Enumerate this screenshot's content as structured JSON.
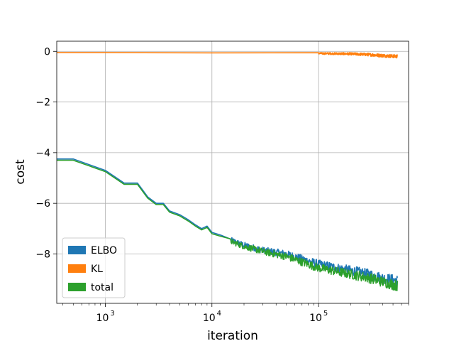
{
  "chart_data": {
    "type": "line",
    "title": "",
    "xlabel": "iteration",
    "ylabel": "cost",
    "xscale": "log",
    "xlim": [
      350,
      700000
    ],
    "ylim": [
      -9.95,
      0.4
    ],
    "grid": true,
    "legend_position": "lower-left",
    "x_ticks": [
      {
        "value": 1000,
        "base": "10",
        "exp": "3"
      },
      {
        "value": 10000,
        "base": "10",
        "exp": "4"
      },
      {
        "value": 100000,
        "base": "10",
        "exp": "5"
      }
    ],
    "y_ticks": [
      {
        "value": 0,
        "label": "0"
      },
      {
        "value": -2,
        "label": "−2"
      },
      {
        "value": -4,
        "label": "−4"
      },
      {
        "value": -6,
        "label": "−6"
      },
      {
        "value": -8,
        "label": "−8"
      }
    ],
    "series": [
      {
        "name": "ELBO",
        "color": "#1f77b4",
        "x": [
          350,
          500,
          1000,
          1500,
          2000,
          2500,
          3000,
          3500,
          4000,
          5000,
          6000,
          7000,
          8000,
          9000,
          10000,
          12000,
          15000,
          20000,
          30000,
          50000,
          100000,
          200000,
          300000,
          400000,
          550000
        ],
        "y": [
          -4.25,
          -4.25,
          -4.7,
          -5.2,
          -5.2,
          -5.75,
          -6.0,
          -6.0,
          -6.3,
          -6.45,
          -6.65,
          -6.85,
          -7.0,
          -6.9,
          -7.15,
          -7.25,
          -7.45,
          -7.65,
          -7.85,
          -8.0,
          -8.4,
          -8.65,
          -8.8,
          -8.95,
          -9.05
        ],
        "noise_start": 15000,
        "noise_amp": 0.22
      },
      {
        "name": "KL",
        "color": "#ff7f0e",
        "x": [
          350,
          1000,
          10000,
          100000,
          200000,
          300000,
          400000,
          550000
        ],
        "y": [
          -0.05,
          -0.05,
          -0.06,
          -0.08,
          -0.1,
          -0.13,
          -0.17,
          -0.2
        ],
        "noise_start": 100000,
        "noise_amp": 0.07
      },
      {
        "name": "total",
        "color": "#2ca02c",
        "x": [
          350,
          500,
          1000,
          1500,
          2000,
          2500,
          3000,
          3500,
          4000,
          5000,
          6000,
          7000,
          8000,
          9000,
          10000,
          12000,
          15000,
          20000,
          30000,
          50000,
          100000,
          200000,
          300000,
          400000,
          550000
        ],
        "y": [
          -4.3,
          -4.3,
          -4.75,
          -5.25,
          -5.25,
          -5.8,
          -6.05,
          -6.05,
          -6.35,
          -6.5,
          -6.7,
          -6.9,
          -7.05,
          -6.95,
          -7.2,
          -7.3,
          -7.5,
          -7.7,
          -7.9,
          -8.1,
          -8.55,
          -8.8,
          -8.95,
          -9.1,
          -9.25
        ],
        "noise_start": 15000,
        "noise_amp": 0.22
      }
    ]
  }
}
